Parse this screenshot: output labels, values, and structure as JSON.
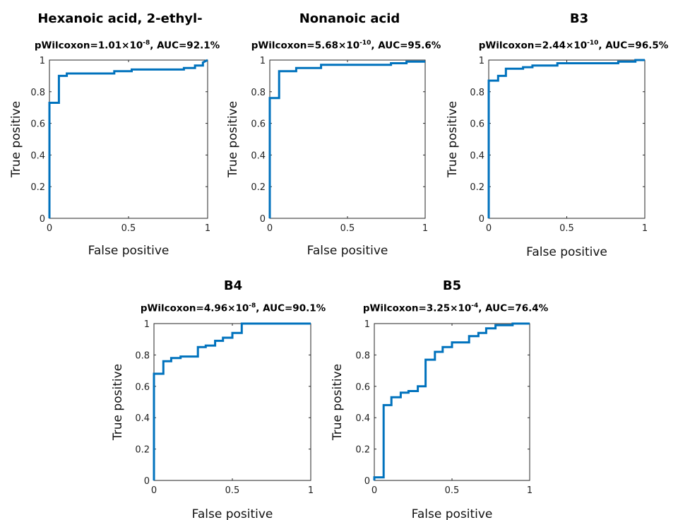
{
  "chart_data": [
    {
      "type": "line",
      "title": "Hexanoic acid, 2-ethyl-",
      "stat": {
        "p_prefix": "pWilcoxon=",
        "p_mantissa": "1.01×10",
        "p_exp": "-8",
        "auc_text": ", AUC=92.1%"
      },
      "xlabel": "False positive",
      "ylabel": "True positive",
      "xlim": [
        0,
        1
      ],
      "ylim": [
        0,
        1
      ],
      "xticks": [
        0,
        0.5,
        1
      ],
      "xtick_labels": [
        "0",
        "0.5",
        "1"
      ],
      "yticks": [
        0,
        0.2,
        0.4,
        0.6,
        0.8,
        1
      ],
      "ytick_labels": [
        "0",
        "0.2",
        "0.4",
        "0.6",
        "0.8",
        "1"
      ],
      "grid": false,
      "color": "#0072bd",
      "series": [
        {
          "x": [
            0,
            0,
            0.06,
            0.06,
            0.11,
            0.11,
            0.41,
            0.41,
            0.52,
            0.52,
            0.85,
            0.85,
            0.92,
            0.92,
            0.97,
            0.97,
            1.0
          ],
          "y": [
            0,
            0.73,
            0.73,
            0.9,
            0.9,
            0.915,
            0.915,
            0.93,
            0.93,
            0.94,
            0.94,
            0.95,
            0.95,
            0.965,
            0.965,
            0.985,
            1.0
          ]
        }
      ]
    },
    {
      "type": "line",
      "title": "Nonanoic acid",
      "stat": {
        "p_prefix": "pWilcoxon=",
        "p_mantissa": "5.68×10",
        "p_exp": "-10",
        "auc_text": ", AUC=95.6%"
      },
      "xlabel": "False positive",
      "ylabel": "True positive",
      "xlim": [
        0,
        1
      ],
      "ylim": [
        0,
        1
      ],
      "xticks": [
        0,
        0.5,
        1
      ],
      "xtick_labels": [
        "0",
        "0.5",
        "1"
      ],
      "yticks": [
        0,
        0.2,
        0.4,
        0.6,
        0.8,
        1
      ],
      "ytick_labels": [
        "0",
        "0.2",
        "0.4",
        "0.6",
        "0.8",
        "1"
      ],
      "grid": false,
      "color": "#0072bd",
      "series": [
        {
          "x": [
            0,
            0,
            0.06,
            0.06,
            0.17,
            0.17,
            0.33,
            0.33,
            0.78,
            0.78,
            0.88,
            0.88,
            1.0
          ],
          "y": [
            0,
            0.76,
            0.76,
            0.93,
            0.93,
            0.95,
            0.95,
            0.97,
            0.97,
            0.98,
            0.98,
            0.99,
            0.99
          ]
        }
      ]
    },
    {
      "type": "line",
      "title": "B3",
      "stat": {
        "p_prefix": "pWilcoxon=",
        "p_mantissa": "2.44×10",
        "p_exp": "-10",
        "auc_text": ", AUC=96.5%"
      },
      "xlabel": "False positive",
      "ylabel": "True positive",
      "xlim": [
        0,
        1
      ],
      "ylim": [
        0,
        1
      ],
      "xticks": [
        0,
        0.5,
        1
      ],
      "xtick_labels": [
        "0",
        "0.5",
        "1"
      ],
      "yticks": [
        0,
        0.2,
        0.4,
        0.6,
        0.8,
        1
      ],
      "ytick_labels": [
        "0",
        "0.2",
        "0.4",
        "0.6",
        "0.8",
        "1"
      ],
      "grid": false,
      "color": "#0072bd",
      "series": [
        {
          "x": [
            0,
            0,
            0.06,
            0.06,
            0.11,
            0.11,
            0.22,
            0.22,
            0.28,
            0.28,
            0.44,
            0.44,
            0.83,
            0.83,
            0.94,
            0.94,
            1.0
          ],
          "y": [
            0,
            0.87,
            0.87,
            0.9,
            0.9,
            0.945,
            0.945,
            0.955,
            0.955,
            0.965,
            0.965,
            0.98,
            0.98,
            0.99,
            0.99,
            1.0,
            1.0
          ]
        }
      ]
    },
    {
      "type": "line",
      "title": "B4",
      "stat": {
        "p_prefix": "pWilcoxon=",
        "p_mantissa": "4.96×10",
        "p_exp": "-8",
        "auc_text": ", AUC=90.1%"
      },
      "xlabel": "False positive",
      "ylabel": "True positive",
      "xlim": [
        0,
        1
      ],
      "ylim": [
        0,
        1
      ],
      "xticks": [
        0,
        0.5,
        1
      ],
      "xtick_labels": [
        "0",
        "0.5",
        "1"
      ],
      "yticks": [
        0,
        0.2,
        0.4,
        0.6,
        0.8,
        1
      ],
      "ytick_labels": [
        "0",
        "0.2",
        "0.4",
        "0.6",
        "0.8",
        "1"
      ],
      "grid": false,
      "color": "#0072bd",
      "series": [
        {
          "x": [
            0,
            0,
            0.06,
            0.06,
            0.11,
            0.11,
            0.17,
            0.17,
            0.28,
            0.28,
            0.33,
            0.33,
            0.39,
            0.39,
            0.44,
            0.44,
            0.5,
            0.5,
            0.56,
            0.56,
            0.95,
            0.95,
            1.0
          ],
          "y": [
            0,
            0.68,
            0.68,
            0.76,
            0.76,
            0.78,
            0.78,
            0.79,
            0.79,
            0.85,
            0.85,
            0.86,
            0.86,
            0.89,
            0.89,
            0.91,
            0.91,
            0.94,
            0.94,
            1.0,
            1.0,
            1.0,
            1.0
          ]
        }
      ]
    },
    {
      "type": "line",
      "title": "B5",
      "stat": {
        "p_prefix": "pWilcoxon=",
        "p_mantissa": "3.25×10",
        "p_exp": "-4",
        "auc_text": ", AUC=76.4%"
      },
      "xlabel": "False positive",
      "ylabel": "True positive",
      "xlim": [
        0,
        1
      ],
      "ylim": [
        0,
        1
      ],
      "xticks": [
        0,
        0.5,
        1
      ],
      "xtick_labels": [
        "0",
        "0.5",
        "1"
      ],
      "yticks": [
        0,
        0.2,
        0.4,
        0.6,
        0.8,
        1
      ],
      "ytick_labels": [
        "0",
        "0.2",
        "0.4",
        "0.6",
        "0.8",
        "1"
      ],
      "grid": false,
      "color": "#0072bd",
      "series": [
        {
          "x": [
            0,
            0,
            0.06,
            0.06,
            0.11,
            0.11,
            0.17,
            0.17,
            0.22,
            0.22,
            0.28,
            0.28,
            0.33,
            0.33,
            0.39,
            0.39,
            0.44,
            0.44,
            0.5,
            0.5,
            0.61,
            0.61,
            0.67,
            0.67,
            0.72,
            0.72,
            0.78,
            0.78,
            0.89,
            0.89,
            1.0
          ],
          "y": [
            0,
            0.02,
            0.02,
            0.48,
            0.48,
            0.53,
            0.53,
            0.56,
            0.56,
            0.57,
            0.57,
            0.6,
            0.6,
            0.77,
            0.77,
            0.82,
            0.82,
            0.85,
            0.85,
            0.88,
            0.88,
            0.92,
            0.92,
            0.94,
            0.94,
            0.97,
            0.97,
            0.99,
            0.99,
            1.0,
            1.0
          ]
        }
      ]
    }
  ]
}
